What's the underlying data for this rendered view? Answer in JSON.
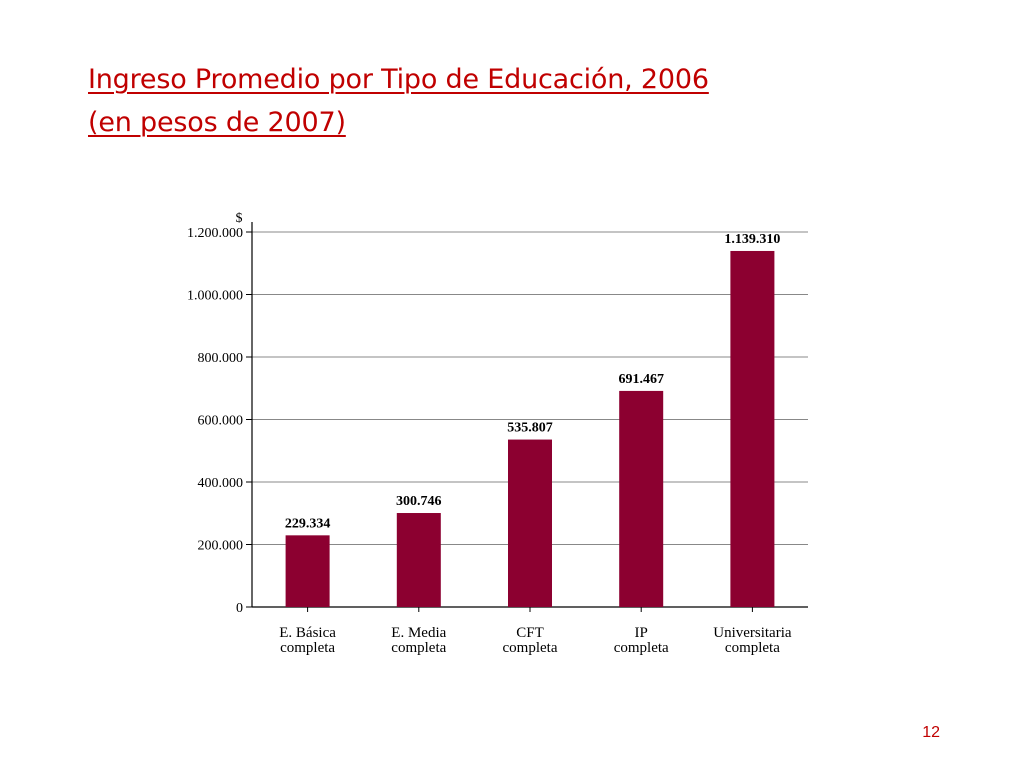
{
  "slide": {
    "title_line1": "Ingreso Promedio por Tipo de Educación, 2006",
    "title_line2": "(en pesos de 2007)",
    "page_number": "12"
  },
  "colors": {
    "title": "#c00000",
    "bar": "#8c0030",
    "grid": "#888888",
    "axis": "#000000"
  },
  "chart_data": {
    "type": "bar",
    "title": "",
    "xlabel": "",
    "ylabel": "$",
    "ylim": [
      0,
      1200000
    ],
    "yticks": [
      0,
      200000,
      400000,
      600000,
      800000,
      1000000,
      1200000
    ],
    "ytick_labels": [
      "0",
      "200.000",
      "400.000",
      "600.000",
      "800.000",
      "1.000.000",
      "1.200.000"
    ],
    "grid": true,
    "categories": [
      [
        "E. Básica",
        "completa"
      ],
      [
        "E. Media",
        "completa"
      ],
      [
        "CFT",
        "completa"
      ],
      [
        "IP",
        "completa"
      ],
      [
        "Universitaria",
        "completa"
      ]
    ],
    "values": [
      229334,
      300746,
      535807,
      691467,
      1139310
    ],
    "value_labels": [
      "229.334",
      "300.746",
      "535.807",
      "691.467",
      "1.139.310"
    ]
  }
}
